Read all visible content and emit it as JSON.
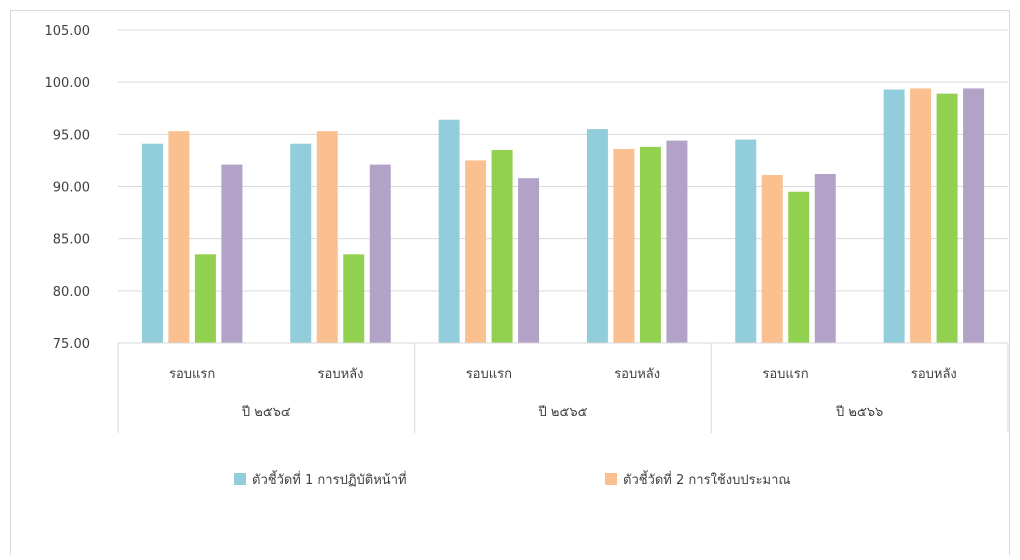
{
  "chart_data": {
    "type": "bar",
    "groups": [
      "ปี ๒๕๖๔",
      "ปี ๒๕๖๕",
      "ปี ๒๕๖๖"
    ],
    "categories": [
      "รอบแรก",
      "รอบหลัง",
      "รอบแรก",
      "รอบหลัง",
      "รอบแรก",
      "รอบหลัง"
    ],
    "series": [
      {
        "name": "ตัวชี้วัดที่ 1 การปฏิบัติหน้าที่",
        "color": "#92cddc",
        "values": [
          94.1,
          94.1,
          96.4,
          95.5,
          94.5,
          99.3
        ]
      },
      {
        "name": "ตัวชี้วัดที่ 2 การใช้งบประมาณ",
        "color": "#fac090",
        "values": [
          95.3,
          95.3,
          92.5,
          93.6,
          91.1,
          99.4
        ]
      },
      {
        "name": "",
        "color": "#92d050",
        "values": [
          83.5,
          83.5,
          93.5,
          93.8,
          89.5,
          98.9
        ]
      },
      {
        "name": "",
        "color": "#b3a2c7",
        "values": [
          92.1,
          92.1,
          90.8,
          94.4,
          91.2,
          99.4
        ]
      }
    ],
    "yticks": [
      "75.00",
      "80.00",
      "85.00",
      "90.00",
      "95.00",
      "100.00",
      "105.00"
    ],
    "ylim": [
      75,
      105
    ],
    "grid": true,
    "legend": "bottom"
  }
}
